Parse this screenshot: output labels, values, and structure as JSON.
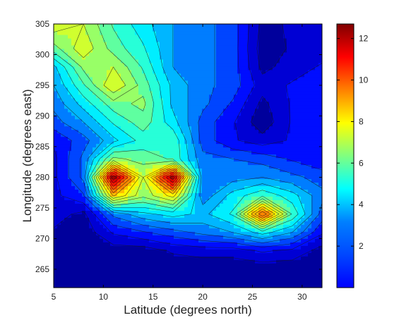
{
  "chart_data": {
    "type": "heatmap",
    "subtype": "filled-contour",
    "title": "",
    "xlabel": "Latitude (degrees north)",
    "ylabel": "Longitude (degrees east)",
    "xlim": [
      5,
      32
    ],
    "ylim": [
      262,
      305
    ],
    "x_ticks": [
      "5",
      "10",
      "15",
      "20",
      "25",
      "30"
    ],
    "y_ticks": [
      "265",
      "270",
      "275",
      "280",
      "285",
      "290",
      "295",
      "300",
      "305"
    ],
    "colorbar": {
      "range": [
        0,
        12.7
      ],
      "ticks": [
        "2",
        "4",
        "6",
        "8",
        "10",
        "12"
      ],
      "colormap": "jet"
    },
    "grid": false,
    "legend": "none",
    "x_grid": [
      5,
      8,
      11,
      14,
      17,
      20,
      23,
      26,
      29,
      32
    ],
    "y_grid": [
      262,
      265,
      268,
      271,
      274,
      277,
      280,
      283,
      286,
      289,
      292,
      295,
      298,
      301,
      305
    ],
    "z_rows": [
      [
        0.2,
        0.2,
        0.2,
        0.2,
        0.2,
        0.2,
        0.2,
        0.2,
        0.2,
        0.2
      ],
      [
        0.2,
        0.2,
        0.2,
        0.2,
        0.2,
        0.2,
        0.2,
        0.2,
        0.2,
        0.2
      ],
      [
        0.3,
        0.2,
        0.3,
        0.3,
        0.8,
        1.0,
        1.0,
        1.5,
        1.2,
        0.4
      ],
      [
        0.6,
        0.2,
        1.5,
        2.0,
        2.5,
        3.0,
        3.5,
        4.5,
        3.5,
        1.5
      ],
      [
        1.0,
        0.5,
        3.0,
        4.0,
        4.5,
        4.0,
        5.0,
        10.5,
        5.5,
        2.5
      ],
      [
        1.2,
        2.0,
        8.5,
        6.5,
        8.0,
        3.0,
        4.5,
        5.5,
        4.5,
        3.0
      ],
      [
        1.2,
        3.0,
        12.5,
        7.0,
        12.5,
        3.0,
        3.2,
        3.5,
        3.0,
        2.5
      ],
      [
        1.2,
        3.0,
        6.5,
        6.0,
        5.5,
        3.0,
        2.8,
        2.5,
        2.0,
        1.5
      ],
      [
        1.5,
        2.5,
        4.0,
        5.2,
        5.5,
        2.5,
        1.5,
        1.0,
        1.5,
        1.5
      ],
      [
        2.5,
        3.5,
        5.0,
        6.0,
        4.5,
        2.5,
        1.5,
        0.2,
        1.5,
        1.5
      ],
      [
        3.0,
        4.5,
        6.0,
        6.5,
        4.0,
        3.0,
        2.0,
        0.5,
        1.5,
        2.0
      ],
      [
        3.5,
        5.5,
        7.7,
        6.0,
        4.0,
        3.0,
        2.5,
        1.0,
        1.5,
        2.0
      ],
      [
        4.0,
        6.5,
        7.0,
        5.5,
        3.5,
        3.0,
        2.5,
        0.5,
        1.0,
        1.5
      ],
      [
        6.0,
        7.5,
        6.0,
        5.0,
        3.5,
        3.0,
        2.5,
        0.3,
        0.8,
        1.0
      ],
      [
        7.5,
        7.0,
        5.5,
        4.5,
        3.5,
        3.0,
        2.5,
        0.5,
        0.8,
        1.0
      ]
    ]
  }
}
